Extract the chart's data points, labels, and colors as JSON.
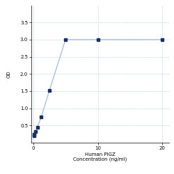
{
  "x": [
    0.078,
    0.156,
    0.313,
    0.625,
    1.25,
    2.5,
    5,
    10,
    20
  ],
  "y": [
    0.2,
    0.25,
    0.32,
    0.45,
    0.75,
    1.52,
    3.0,
    3.0,
    3.0
  ],
  "line_color": "#a0bcd8",
  "marker_color": "#1a3060",
  "marker_style": "s",
  "marker_size": 3.0,
  "line_width": 0.9,
  "xlabel_line1": "Human PIGZ",
  "xlabel_line2": "Concentration (ng/ml)",
  "ylabel": "OD",
  "xlim": [
    -0.3,
    21
  ],
  "ylim": [
    0,
    4.0
  ],
  "yticks": [
    0.5,
    1.0,
    1.5,
    2.0,
    2.5,
    3.0,
    3.5
  ],
  "xticks": [
    0,
    10,
    20
  ],
  "grid_color": "#c8d4e4",
  "grid_linestyle": "--",
  "grid_linewidth": 0.5,
  "bg_color": "#ffffff",
  "label_fontsize": 5.0,
  "tick_fontsize": 5.0
}
